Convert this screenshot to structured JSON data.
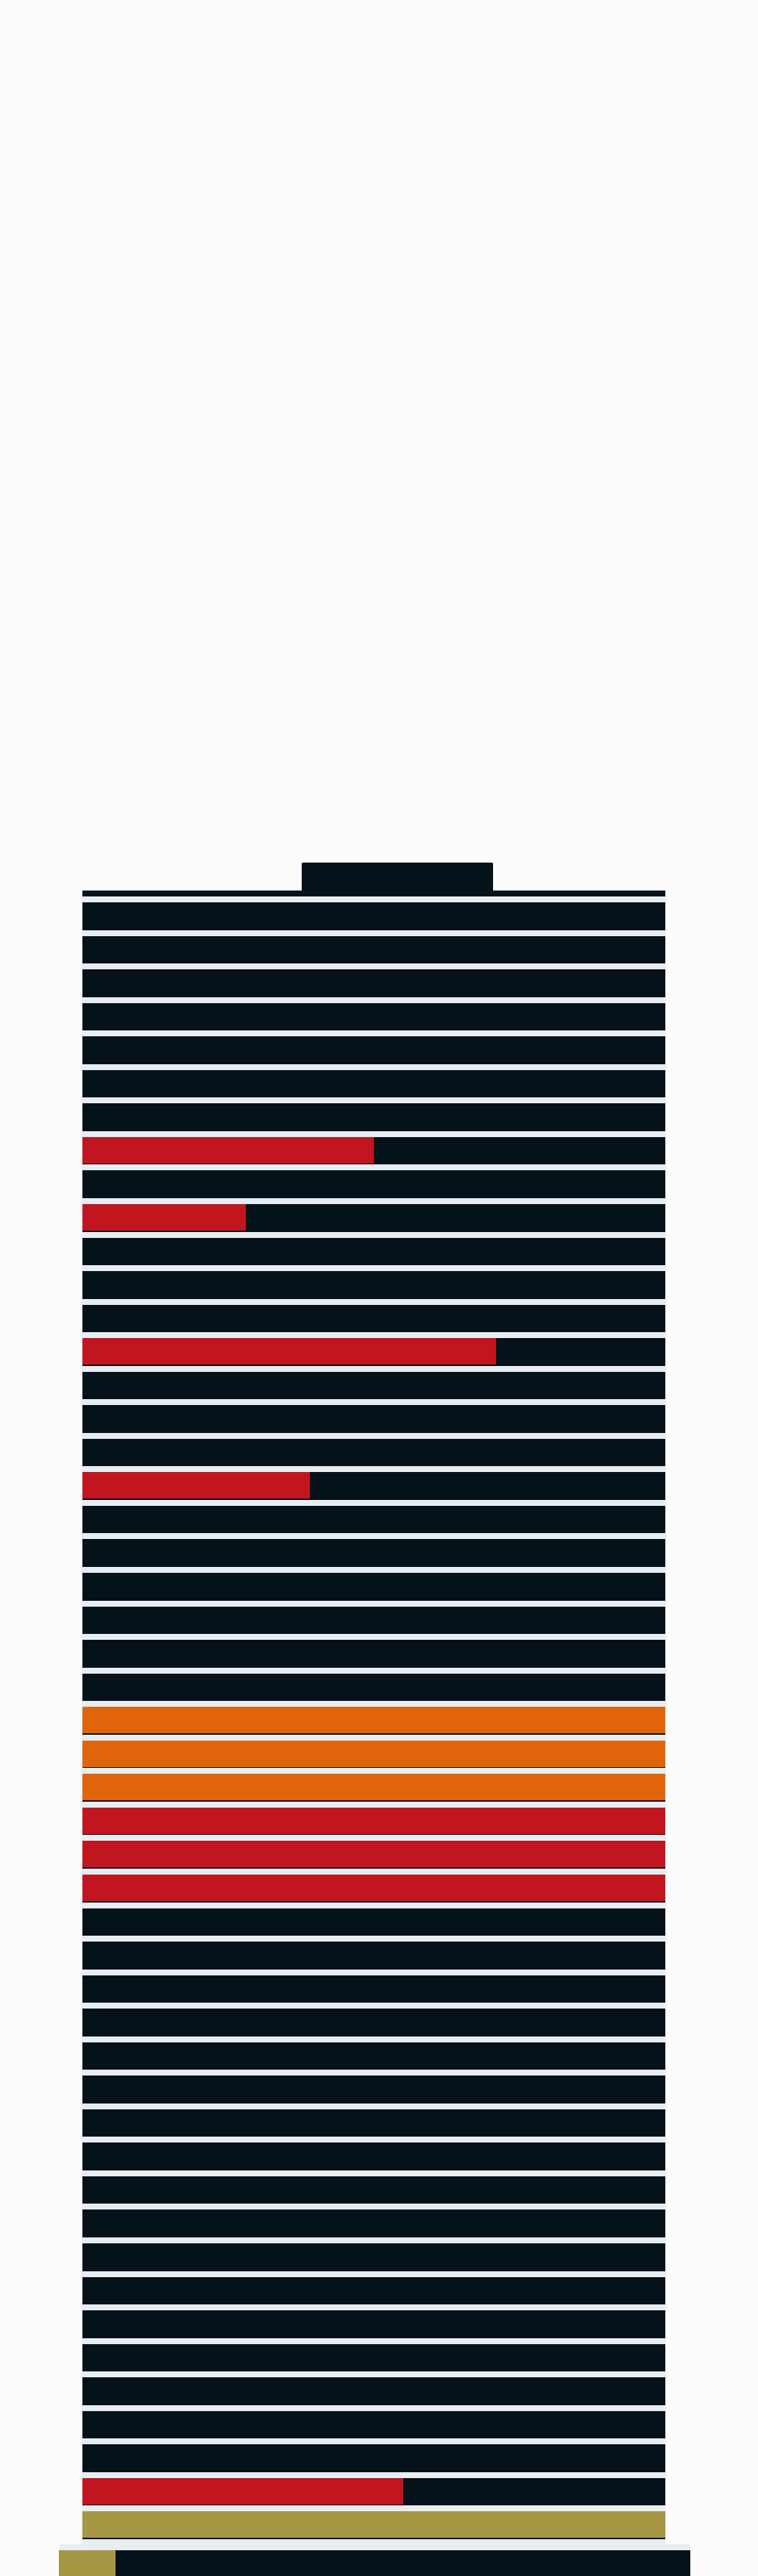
{
  "colors": {
    "background": "#fcfcfd",
    "building": "#061219",
    "separator": "#e8edf1",
    "red": "#c1161f",
    "orange": "#e0650a",
    "olive": "#a69744"
  },
  "floors": [
    {
      "fill": 0.0,
      "color": "red"
    },
    {
      "fill": 0.0,
      "color": "red"
    },
    {
      "fill": 0.0,
      "color": "red"
    },
    {
      "fill": 0.0,
      "color": "red"
    },
    {
      "fill": 0.0,
      "color": "red"
    },
    {
      "fill": 0.0,
      "color": "red"
    },
    {
      "fill": 0.0,
      "color": "red"
    },
    {
      "fill": 0.5,
      "color": "red"
    },
    {
      "fill": 0.0,
      "color": "red"
    },
    {
      "fill": 0.28,
      "color": "red"
    },
    {
      "fill": 0.0,
      "color": "red"
    },
    {
      "fill": 0.0,
      "color": "red"
    },
    {
      "fill": 0.0,
      "color": "red"
    },
    {
      "fill": 0.71,
      "color": "red"
    },
    {
      "fill": 0.0,
      "color": "red"
    },
    {
      "fill": 0.0,
      "color": "red"
    },
    {
      "fill": 0.0,
      "color": "red"
    },
    {
      "fill": 0.39,
      "color": "red"
    },
    {
      "fill": 0.0,
      "color": "red"
    },
    {
      "fill": 0.0,
      "color": "red"
    },
    {
      "fill": 0.0,
      "color": "red"
    },
    {
      "fill": 0.0,
      "color": "red"
    },
    {
      "fill": 0.0,
      "color": "red"
    },
    {
      "fill": 0.0,
      "color": "red"
    },
    {
      "fill": 1.0,
      "color": "orange"
    },
    {
      "fill": 1.0,
      "color": "orange"
    },
    {
      "fill": 1.0,
      "color": "orange"
    },
    {
      "fill": 1.0,
      "color": "red"
    },
    {
      "fill": 1.0,
      "color": "red"
    },
    {
      "fill": 1.0,
      "color": "red"
    },
    {
      "fill": 0.0,
      "color": "red"
    },
    {
      "fill": 0.0,
      "color": "red"
    },
    {
      "fill": 0.0,
      "color": "red"
    },
    {
      "fill": 0.0,
      "color": "red"
    },
    {
      "fill": 0.0,
      "color": "red"
    },
    {
      "fill": 0.0,
      "color": "red"
    },
    {
      "fill": 0.0,
      "color": "red"
    },
    {
      "fill": 0.0,
      "color": "red"
    },
    {
      "fill": 0.0,
      "color": "red"
    },
    {
      "fill": 0.0,
      "color": "red"
    },
    {
      "fill": 0.0,
      "color": "red"
    },
    {
      "fill": 0.0,
      "color": "red"
    },
    {
      "fill": 0.0,
      "color": "red"
    },
    {
      "fill": 0.0,
      "color": "red"
    },
    {
      "fill": 0.0,
      "color": "red"
    },
    {
      "fill": 0.0,
      "color": "red"
    },
    {
      "fill": 0.0,
      "color": "red"
    },
    {
      "fill": 0.55,
      "color": "red"
    },
    {
      "fill": 1.0,
      "color": "olive"
    },
    {
      "fill": 0.0,
      "color": "red"
    }
  ],
  "base": {
    "fill": 0.09,
    "color": "olive"
  }
}
